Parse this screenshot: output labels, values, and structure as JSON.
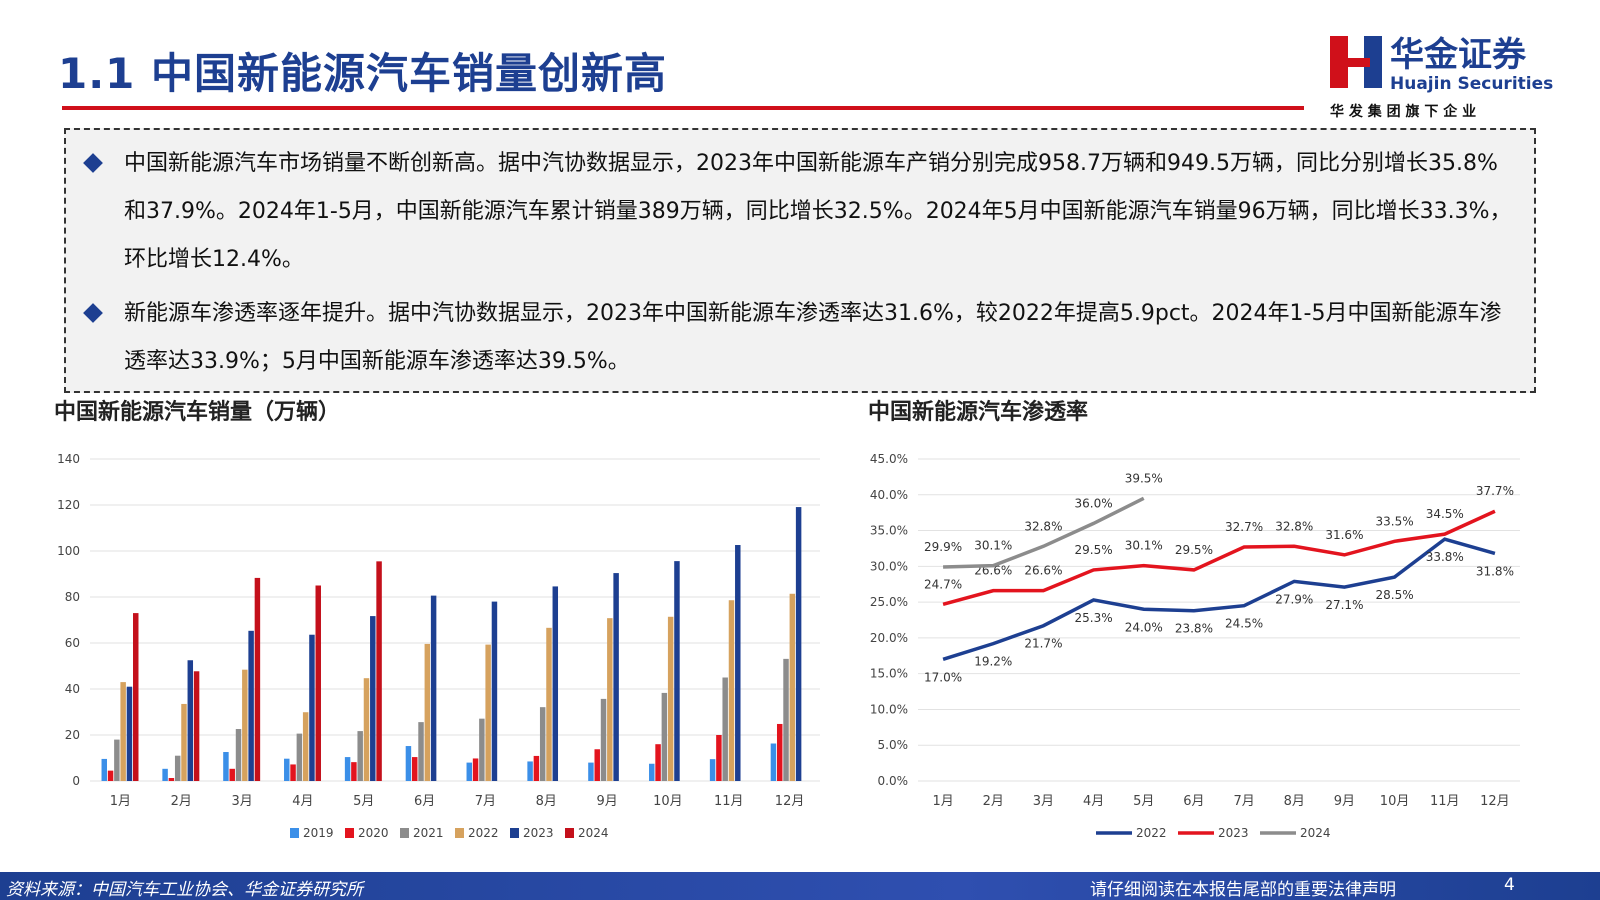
{
  "header": {
    "title": "1.1 中国新能源汽车销量创新高",
    "logo_name": "华金证券",
    "logo_en": "Huajin Securities",
    "logo_sub": "华 发 集 团 旗 下 企 业"
  },
  "bullets": [
    "中国新能源汽车市场销量不断创新高。据中汽协数据显示，2023年中国新能源车产销分别完成958.7万辆和949.5万辆，同比分别增长35.8%和37.9%。2024年1-5月，中国新能源汽车累计销量389万辆，同比增长32.5%。2024年5月中国新能源汽车销量96万辆，同比增长33.3%，环比增长12.4%。",
    "新能源车渗透率逐年提升。据中汽协数据显示，2023年中国新能源车渗透率达31.6%，较2022年提高5.9pct。2024年1-5月中国新能源车渗透率达33.9%；5月中国新能源车渗透率达39.5%。"
  ],
  "footer": {
    "source": "资料来源：中国汽车工业协会、华金证券研究所",
    "notice": "请仔细阅读在本报告尾部的重要法律声明",
    "page": "4"
  },
  "chart_data": [
    {
      "type": "bar",
      "title": "中国新能源汽车销量（万辆）",
      "categories": [
        "1月",
        "2月",
        "3月",
        "4月",
        "5月",
        "6月",
        "7月",
        "8月",
        "9月",
        "10月",
        "11月",
        "12月"
      ],
      "series": [
        {
          "name": "2019",
          "color": "#3b8fe8",
          "values": [
            9.6,
            5.3,
            12.6,
            9.7,
            10.4,
            15.2,
            8,
            8.5,
            8,
            7.5,
            9.5,
            16.3
          ]
        },
        {
          "name": "2020",
          "color": "#e3141e",
          "values": [
            4.5,
            1.3,
            5.3,
            7.2,
            8.2,
            10.4,
            9.8,
            10.9,
            13.8,
            16,
            20,
            24.8
          ]
        },
        {
          "name": "2021",
          "color": "#8c8c8c",
          "values": [
            18,
            11,
            22.6,
            20.6,
            21.7,
            25.6,
            27.1,
            32.1,
            35.7,
            38.3,
            45,
            53.1
          ]
        },
        {
          "name": "2022",
          "color": "#d6a25e",
          "values": [
            43,
            33.5,
            48.4,
            29.9,
            44.7,
            59.6,
            59.3,
            66.6,
            70.8,
            71.4,
            78.6,
            81.4
          ]
        },
        {
          "name": "2023",
          "color": "#1d3f91",
          "values": [
            41,
            52.5,
            65.3,
            63.6,
            71.7,
            80.6,
            78,
            84.6,
            90.4,
            95.6,
            102.6,
            119.1
          ]
        },
        {
          "name": "2024",
          "color": "#c4101b",
          "values": [
            73,
            47.7,
            88.3,
            85,
            95.5,
            null,
            null,
            null,
            null,
            null,
            null,
            null
          ]
        }
      ],
      "ylim": [
        0,
        140
      ],
      "yticks": [
        0,
        20,
        40,
        60,
        80,
        100,
        120,
        140
      ],
      "legend": "bottom"
    },
    {
      "type": "line",
      "title": "中国新能源汽车渗透率",
      "categories": [
        "1月",
        "2月",
        "3月",
        "4月",
        "5月",
        "6月",
        "7月",
        "8月",
        "9月",
        "10月",
        "11月",
        "12月"
      ],
      "series": [
        {
          "name": "2022",
          "color": "#1d3f91",
          "values": [
            17.0,
            19.2,
            21.7,
            25.3,
            24.0,
            23.8,
            24.5,
            27.9,
            27.1,
            28.5,
            33.8,
            31.8
          ],
          "value_labels": [
            "17.0%",
            "19.2%",
            "21.7%",
            "25.3%",
            "24.0%",
            "23.8%",
            "24.5%",
            "27.9%",
            "27.1%",
            "28.5%",
            "33.8%",
            "31.8%"
          ]
        },
        {
          "name": "2023",
          "color": "#e3141e",
          "values": [
            24.7,
            26.6,
            26.6,
            29.5,
            30.1,
            29.5,
            32.7,
            32.8,
            31.6,
            33.5,
            34.5,
            37.7
          ],
          "value_labels": [
            "24.7%",
            "26.6%",
            "26.6%",
            "29.5%",
            "30.1%",
            "29.5%",
            "32.7%",
            "32.8%",
            "31.6%",
            "33.5%",
            "34.5%",
            "37.7%"
          ]
        },
        {
          "name": "2024",
          "color": "#8c8c8c",
          "values": [
            29.9,
            30.1,
            32.8,
            36.0,
            39.5,
            null,
            null,
            null,
            null,
            null,
            null,
            null
          ],
          "value_labels": [
            "29.9%",
            "30.1%",
            "32.8%",
            "36.0%",
            "39.5%",
            null,
            null,
            null,
            null,
            null,
            null,
            null
          ]
        }
      ],
      "ylim": [
        0,
        45
      ],
      "yticks": [
        {
          "value": 0,
          "label": "0.0%"
        },
        {
          "value": 5,
          "label": "5.0%"
        },
        {
          "value": 10,
          "label": "10.0%"
        },
        {
          "value": 15,
          "label": "15.0%"
        },
        {
          "value": 20,
          "label": "20.0%"
        },
        {
          "value": 25,
          "label": "25.0%"
        },
        {
          "value": 30,
          "label": "30.0%"
        },
        {
          "value": 35,
          "label": "35.0%"
        },
        {
          "value": 40,
          "label": "40.0%"
        },
        {
          "value": 45,
          "label": "45.0%"
        }
      ],
      "legend": "bottom"
    }
  ]
}
